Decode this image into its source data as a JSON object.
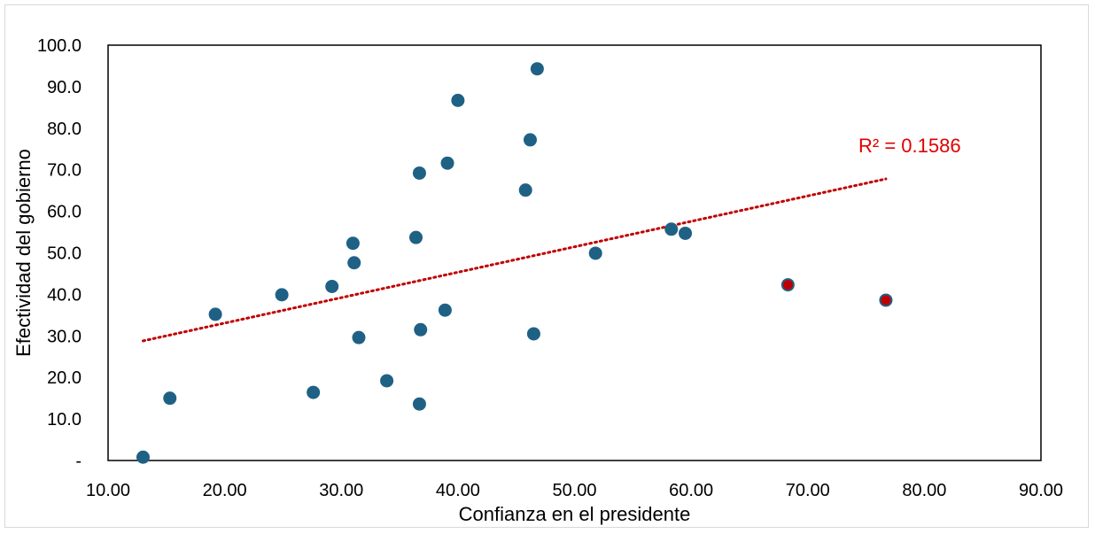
{
  "chart_data": {
    "type": "scatter",
    "xlabel": "Confianza en el presidente",
    "ylabel": "Efectividad del gobierno",
    "xlim": [
      10,
      90
    ],
    "ylim": [
      0,
      100
    ],
    "x_ticks": [
      "10.00",
      "20.00",
      "30.00",
      "40.00",
      "50.00",
      "60.00",
      "70.00",
      "80.00",
      "90.00"
    ],
    "y_ticks": [
      "-",
      "10.0",
      "20.0",
      "30.0",
      "40.0",
      "50.0",
      "60.0",
      "70.0",
      "80.0",
      "90.0",
      "100.0"
    ],
    "grid": false,
    "legend": "none",
    "colors": {
      "point": "#1f6185",
      "highlight": "#c00000",
      "trendline": "#c00000",
      "r2_text": "#e00000"
    },
    "points": [
      {
        "x": 13.0,
        "y": 0.8,
        "highlight": false
      },
      {
        "x": 15.3,
        "y": 15.0,
        "highlight": false
      },
      {
        "x": 19.2,
        "y": 35.2,
        "highlight": false
      },
      {
        "x": 24.9,
        "y": 39.9,
        "highlight": false
      },
      {
        "x": 27.6,
        "y": 16.4,
        "highlight": false
      },
      {
        "x": 29.2,
        "y": 41.9,
        "highlight": false
      },
      {
        "x": 31.0,
        "y": 52.3,
        "highlight": false
      },
      {
        "x": 31.1,
        "y": 47.6,
        "highlight": false
      },
      {
        "x": 31.5,
        "y": 29.6,
        "highlight": false
      },
      {
        "x": 33.9,
        "y": 19.2,
        "highlight": false
      },
      {
        "x": 36.4,
        "y": 53.7,
        "highlight": false
      },
      {
        "x": 36.7,
        "y": 69.2,
        "highlight": false
      },
      {
        "x": 36.8,
        "y": 31.5,
        "highlight": false
      },
      {
        "x": 36.7,
        "y": 13.6,
        "highlight": false
      },
      {
        "x": 38.9,
        "y": 36.2,
        "highlight": false
      },
      {
        "x": 39.1,
        "y": 71.6,
        "highlight": false
      },
      {
        "x": 40.0,
        "y": 86.7,
        "highlight": false
      },
      {
        "x": 45.8,
        "y": 65.1,
        "highlight": false
      },
      {
        "x": 46.2,
        "y": 77.2,
        "highlight": false
      },
      {
        "x": 46.5,
        "y": 30.5,
        "highlight": false
      },
      {
        "x": 46.8,
        "y": 94.3,
        "highlight": false
      },
      {
        "x": 51.8,
        "y": 49.9,
        "highlight": false
      },
      {
        "x": 58.3,
        "y": 55.7,
        "highlight": false
      },
      {
        "x": 59.5,
        "y": 54.7,
        "highlight": false
      },
      {
        "x": 68.3,
        "y": 42.3,
        "highlight": true
      },
      {
        "x": 76.7,
        "y": 38.6,
        "highlight": true
      }
    ],
    "trendline": {
      "type": "linear",
      "x_start": 13.0,
      "y_start": 28.8,
      "x_end": 76.7,
      "y_end": 67.8,
      "style": "dotted"
    },
    "r2_label": "R² = 0.1586"
  }
}
